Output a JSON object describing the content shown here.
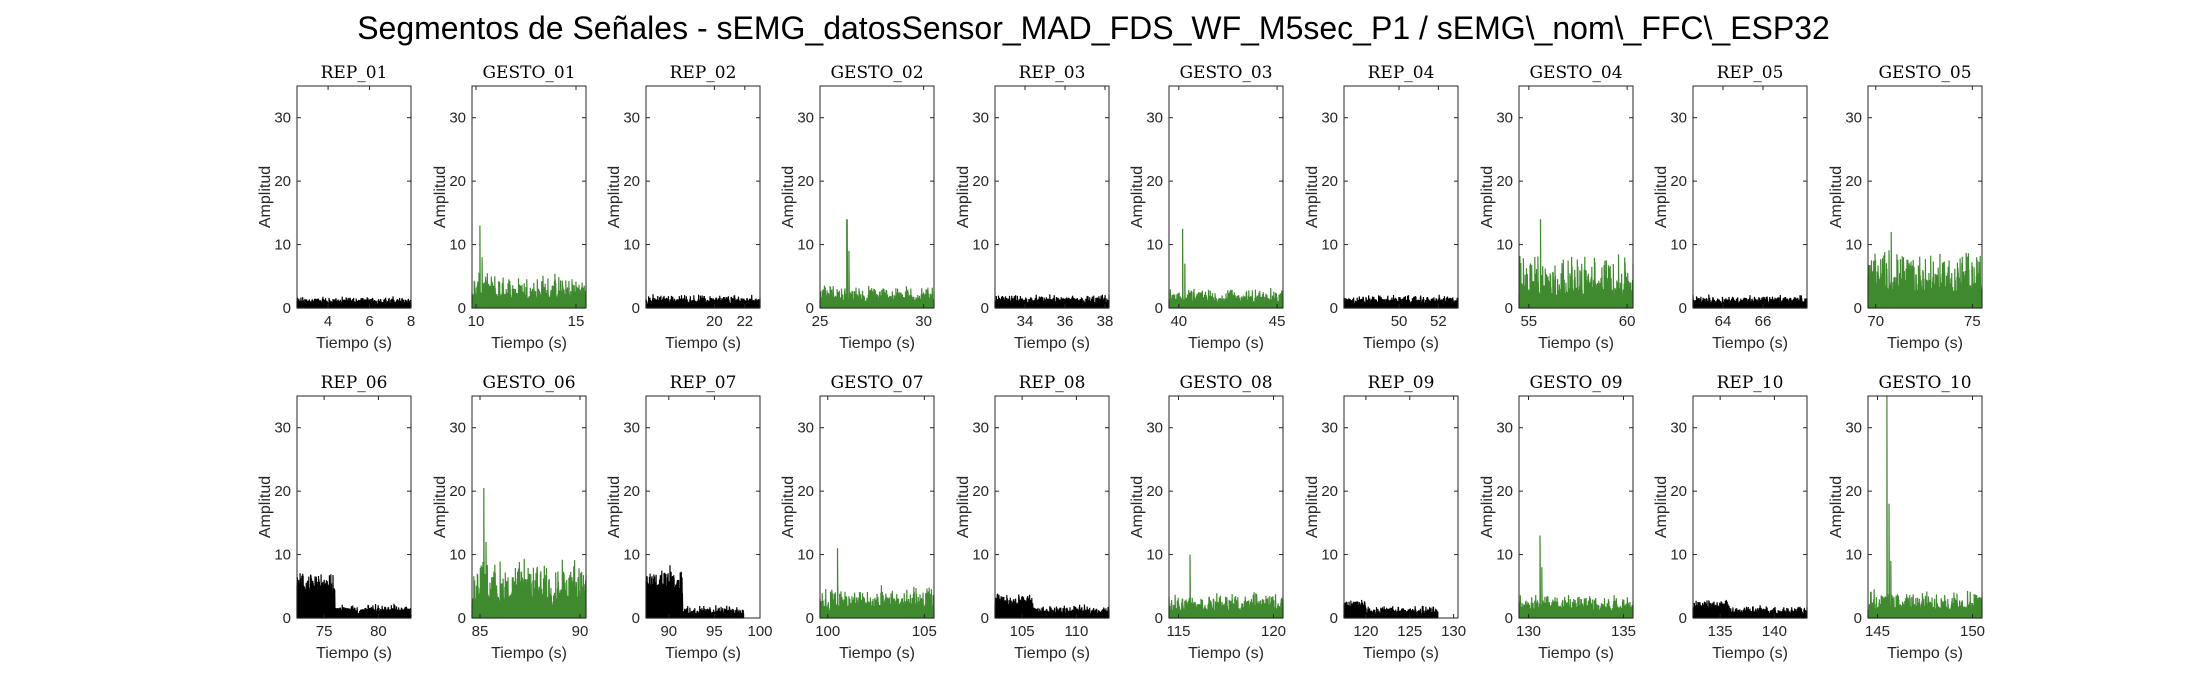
{
  "figure": {
    "title": "Segmentos de Señales - sEMG_datosSensor_MAD_FDS_WF_M5sec_P1 / sEMG\\_nom\\_FFC\\_ESP32"
  },
  "colors": {
    "rep": "#000000",
    "gesto": "#3f8a2e",
    "axis": "#262626"
  },
  "chart_data": [
    {
      "type": "area",
      "title": "REP_01",
      "xlabel": "Tiempo (s)",
      "ylabel": "Amplitud",
      "xlim": [
        2.5,
        8
      ],
      "ylim": [
        0,
        35
      ],
      "xticks": [
        4,
        6,
        8
      ],
      "yticks": [
        0,
        10,
        20,
        30
      ],
      "series": [
        {
          "color": "#000000",
          "x_range": [
            2.5,
            8
          ],
          "baseline": 0.9,
          "noise": 0.6,
          "peaks": []
        }
      ]
    },
    {
      "type": "area",
      "title": "GESTO_01",
      "xlabel": "Tiempo (s)",
      "ylabel": "Amplitud",
      "xlim": [
        9.8,
        15.5
      ],
      "ylim": [
        0,
        35
      ],
      "xticks": [
        10,
        15
      ],
      "yticks": [
        0,
        10,
        20,
        30
      ],
      "series": [
        {
          "color": "#3f8a2e",
          "x_range": [
            9.8,
            15.5
          ],
          "baseline": 1.5,
          "noise": 3.5,
          "peaks": [
            [
              10.2,
              13
            ],
            [
              10.3,
              8
            ]
          ]
        }
      ]
    },
    {
      "type": "area",
      "title": "REP_02",
      "xlabel": "Tiempo (s)",
      "ylabel": "Amplitud",
      "xlim": [
        15.5,
        23
      ],
      "ylim": [
        0,
        35
      ],
      "xticks": [
        20,
        22
      ],
      "yticks": [
        0,
        10,
        20,
        30
      ],
      "series": [
        {
          "color": "#000000",
          "x_range": [
            15.5,
            23
          ],
          "baseline": 1.0,
          "noise": 0.8,
          "peaks": []
        }
      ]
    },
    {
      "type": "area",
      "title": "GESTO_02",
      "xlabel": "Tiempo (s)",
      "ylabel": "Amplitud",
      "xlim": [
        25,
        30.5
      ],
      "ylim": [
        0,
        35
      ],
      "xticks": [
        25,
        30
      ],
      "yticks": [
        0,
        10,
        20,
        30
      ],
      "series": [
        {
          "color": "#3f8a2e",
          "x_range": [
            25,
            30.5
          ],
          "baseline": 1.2,
          "noise": 2.0,
          "peaks": [
            [
              26.3,
              14
            ],
            [
              26.4,
              9
            ]
          ]
        }
      ]
    },
    {
      "type": "area",
      "title": "REP_03",
      "xlabel": "Tiempo (s)",
      "ylabel": "Amplitud",
      "xlim": [
        32.5,
        38.2
      ],
      "ylim": [
        0,
        35
      ],
      "xticks": [
        34,
        36,
        38
      ],
      "yticks": [
        0,
        10,
        20,
        30
      ],
      "series": [
        {
          "color": "#000000",
          "x_range": [
            32.5,
            38.2
          ],
          "baseline": 1.0,
          "noise": 0.7,
          "peaks": []
        }
      ]
    },
    {
      "type": "area",
      "title": "GESTO_03",
      "xlabel": "Tiempo (s)",
      "ylabel": "Amplitud",
      "xlim": [
        39.5,
        45.3
      ],
      "ylim": [
        0,
        35
      ],
      "xticks": [
        40,
        45
      ],
      "yticks": [
        0,
        10,
        20,
        30
      ],
      "series": [
        {
          "color": "#3f8a2e",
          "x_range": [
            39.5,
            45.3
          ],
          "baseline": 1.0,
          "noise": 1.8,
          "peaks": [
            [
              40.2,
              12.5
            ],
            [
              40.3,
              7
            ]
          ]
        }
      ]
    },
    {
      "type": "area",
      "title": "REP_04",
      "xlabel": "Tiempo (s)",
      "ylabel": "Amplitud",
      "xlim": [
        47.2,
        53
      ],
      "ylim": [
        0,
        35
      ],
      "xticks": [
        50,
        52
      ],
      "yticks": [
        0,
        10,
        20,
        30
      ],
      "series": [
        {
          "color": "#000000",
          "x_range": [
            47.2,
            53
          ],
          "baseline": 1.0,
          "noise": 0.7,
          "peaks": []
        }
      ]
    },
    {
      "type": "area",
      "title": "GESTO_04",
      "xlabel": "Tiempo (s)",
      "ylabel": "Amplitud",
      "xlim": [
        54.5,
        60.3
      ],
      "ylim": [
        0,
        35
      ],
      "xticks": [
        55,
        60
      ],
      "yticks": [
        0,
        10,
        20,
        30
      ],
      "series": [
        {
          "color": "#3f8a2e",
          "x_range": [
            54.5,
            60.3
          ],
          "baseline": 2.0,
          "noise": 6.0,
          "peaks": [
            [
              55.6,
              14
            ]
          ]
        }
      ]
    },
    {
      "type": "area",
      "title": "REP_05",
      "xlabel": "Tiempo (s)",
      "ylabel": "Amplitud",
      "xlim": [
        62.5,
        68.2
      ],
      "ylim": [
        0,
        35
      ],
      "xticks": [
        64,
        66
      ],
      "yticks": [
        0,
        10,
        20,
        30
      ],
      "series": [
        {
          "color": "#000000",
          "x_range": [
            62.5,
            68.2
          ],
          "baseline": 1.0,
          "noise": 0.7,
          "peaks": []
        }
      ]
    },
    {
      "type": "area",
      "title": "GESTO_05",
      "xlabel": "Tiempo (s)",
      "ylabel": "Amplitud",
      "xlim": [
        69.6,
        75.5
      ],
      "ylim": [
        0,
        35
      ],
      "xticks": [
        70,
        75
      ],
      "yticks": [
        0,
        10,
        20,
        30
      ],
      "series": [
        {
          "color": "#3f8a2e",
          "x_range": [
            69.6,
            75.5
          ],
          "baseline": 2.5,
          "noise": 6.0,
          "peaks": [
            [
              70.8,
              12
            ]
          ]
        }
      ]
    },
    {
      "type": "area",
      "title": "REP_06",
      "xlabel": "Tiempo (s)",
      "ylabel": "Amplitud",
      "xlim": [
        72.5,
        83
      ],
      "ylim": [
        0,
        35
      ],
      "xticks": [
        75,
        80
      ],
      "yticks": [
        0,
        10,
        20,
        30
      ],
      "series": [
        {
          "color": "#000000",
          "x_range": [
            72.5,
            83
          ],
          "baseline": 1.0,
          "noise": 0.8,
          "peaks": [],
          "burst": [
            72.5,
            76,
            5.0,
            2.5
          ]
        }
      ]
    },
    {
      "type": "area",
      "title": "GESTO_06",
      "xlabel": "Tiempo (s)",
      "ylabel": "Amplitud",
      "xlim": [
        84.6,
        90.3
      ],
      "ylim": [
        0,
        35
      ],
      "xticks": [
        85,
        90
      ],
      "yticks": [
        0,
        10,
        20,
        30
      ],
      "series": [
        {
          "color": "#3f8a2e",
          "x_range": [
            84.6,
            90.3
          ],
          "baseline": 2.5,
          "noise": 6.0,
          "peaks": [
            [
              85.2,
              20.5
            ],
            [
              85.3,
              12
            ]
          ]
        }
      ]
    },
    {
      "type": "area",
      "title": "REP_07",
      "xlabel": "Tiempo (s)",
      "ylabel": "Amplitud",
      "xlim": [
        87.5,
        100
      ],
      "ylim": [
        0,
        35
      ],
      "xticks": [
        90,
        95,
        100
      ],
      "yticks": [
        0,
        10,
        20,
        30
      ],
      "series": [
        {
          "color": "#000000",
          "x_range": [
            87.5,
            98.2
          ],
          "baseline": 0.8,
          "noise": 0.9,
          "peaks": [],
          "burst": [
            87.5,
            91.5,
            5.5,
            3.0
          ]
        }
      ]
    },
    {
      "type": "area",
      "title": "GESTO_07",
      "xlabel": "Tiempo (s)",
      "ylabel": "Amplitud",
      "xlim": [
        99.6,
        105.5
      ],
      "ylim": [
        0,
        35
      ],
      "xticks": [
        100,
        105
      ],
      "yticks": [
        0,
        10,
        20,
        30
      ],
      "series": [
        {
          "color": "#3f8a2e",
          "x_range": [
            99.6,
            105.5
          ],
          "baseline": 1.5,
          "noise": 3.0,
          "peaks": [
            [
              100.5,
              11
            ]
          ]
        }
      ]
    },
    {
      "type": "area",
      "title": "REP_08",
      "xlabel": "Tiempo (s)",
      "ylabel": "Amplitud",
      "xlim": [
        102.5,
        113
      ],
      "ylim": [
        0,
        35
      ],
      "xticks": [
        105,
        110
      ],
      "yticks": [
        0,
        10,
        20,
        30
      ],
      "series": [
        {
          "color": "#000000",
          "x_range": [
            102.5,
            113
          ],
          "baseline": 0.9,
          "noise": 0.8,
          "peaks": [],
          "burst": [
            102.5,
            106,
            2.5,
            1.5
          ]
        }
      ]
    },
    {
      "type": "area",
      "title": "GESTO_08",
      "xlabel": "Tiempo (s)",
      "ylabel": "Amplitud",
      "xlim": [
        114.5,
        120.5
      ],
      "ylim": [
        0,
        35
      ],
      "xticks": [
        115,
        120
      ],
      "yticks": [
        0,
        10,
        20,
        30
      ],
      "series": [
        {
          "color": "#3f8a2e",
          "x_range": [
            114.5,
            120.5
          ],
          "baseline": 1.3,
          "noise": 2.2,
          "peaks": [
            [
              115.6,
              10
            ]
          ]
        }
      ]
    },
    {
      "type": "area",
      "title": "REP_09",
      "xlabel": "Tiempo (s)",
      "ylabel": "Amplitud",
      "xlim": [
        117.5,
        130.5
      ],
      "ylim": [
        0,
        35
      ],
      "xticks": [
        120,
        125,
        130
      ],
      "yticks": [
        0,
        10,
        20,
        30
      ],
      "series": [
        {
          "color": "#000000",
          "x_range": [
            117.5,
            128.2
          ],
          "baseline": 0.8,
          "noise": 0.9,
          "peaks": [],
          "burst": [
            117.5,
            120,
            1.8,
            1.2
          ]
        }
      ]
    },
    {
      "type": "area",
      "title": "GESTO_09",
      "xlabel": "Tiempo (s)",
      "ylabel": "Amplitud",
      "xlim": [
        129.5,
        135.5
      ],
      "ylim": [
        0,
        35
      ],
      "xticks": [
        130,
        135
      ],
      "yticks": [
        0,
        10,
        20,
        30
      ],
      "series": [
        {
          "color": "#3f8a2e",
          "x_range": [
            129.5,
            135.5
          ],
          "baseline": 1.2,
          "noise": 2.5,
          "peaks": [
            [
              130.6,
              13
            ],
            [
              130.7,
              8
            ]
          ]
        }
      ]
    },
    {
      "type": "area",
      "title": "REP_10",
      "xlabel": "Tiempo (s)",
      "ylabel": "Amplitud",
      "xlim": [
        132.5,
        143
      ],
      "ylim": [
        0,
        35
      ],
      "xticks": [
        135,
        140
      ],
      "yticks": [
        0,
        10,
        20,
        30
      ],
      "series": [
        {
          "color": "#000000",
          "x_range": [
            132.5,
            143
          ],
          "baseline": 0.9,
          "noise": 0.8,
          "peaks": [],
          "burst": [
            132.5,
            135.8,
            1.8,
            1.2
          ]
        }
      ]
    },
    {
      "type": "area",
      "title": "GESTO_10",
      "xlabel": "Tiempo (s)",
      "ylabel": "Amplitud",
      "xlim": [
        144.5,
        150.5
      ],
      "ylim": [
        0,
        35
      ],
      "xticks": [
        145,
        150
      ],
      "yticks": [
        0,
        10,
        20,
        30
      ],
      "series": [
        {
          "color": "#3f8a2e",
          "x_range": [
            144.5,
            150.5
          ],
          "baseline": 1.2,
          "noise": 2.8,
          "peaks": [
            [
              145.5,
              35
            ],
            [
              145.6,
              18
            ],
            [
              145.7,
              9
            ]
          ]
        }
      ]
    }
  ]
}
